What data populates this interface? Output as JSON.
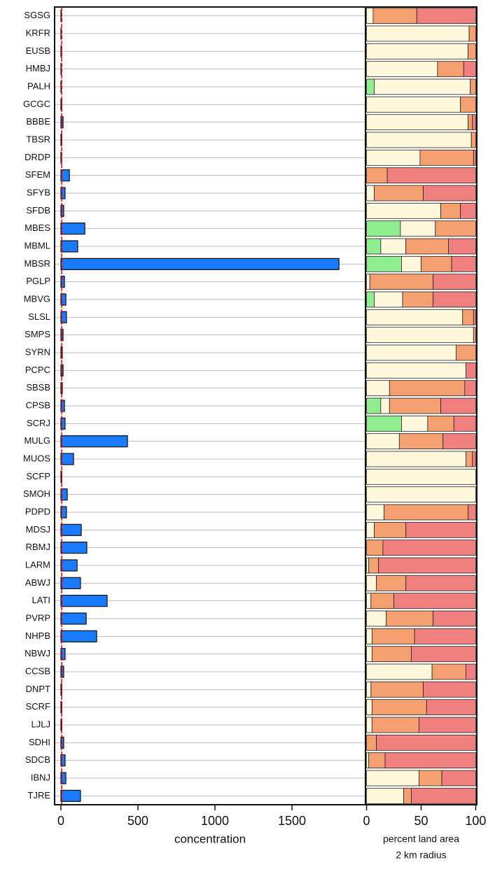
{
  "chart_data": [
    {
      "type": "bar",
      "orientation": "horizontal",
      "categories": [
        "SGSG",
        "KRFR",
        "EUSB",
        "HMBJ",
        "PALH",
        "GCGC",
        "BBBE",
        "TBSR",
        "DRDP",
        "SFEM",
        "SFYB",
        "SFDB",
        "MBES",
        "MBML",
        "MBSR",
        "PGLP",
        "MBVG",
        "SLSL",
        "SMPS",
        "SYRN",
        "PCPC",
        "SBSB",
        "CPSB",
        "SCRJ",
        "MULG",
        "MUOS",
        "SCFP",
        "SMOH",
        "PDPD",
        "MDSJ",
        "RBMJ",
        "LARM",
        "ABWJ",
        "LATI",
        "PVRP",
        "NHPB",
        "NBWJ",
        "CCSB",
        "DNPT",
        "SCRF",
        "LJLJ",
        "SDHI",
        "SDCB",
        "IBNJ",
        "TJRE"
      ],
      "values": [
        2,
        1,
        3,
        2,
        2,
        5,
        14,
        5,
        3,
        55,
        27,
        18,
        155,
        109,
        1805,
        23,
        32,
        36,
        14,
        9,
        14,
        9,
        23,
        27,
        432,
        82,
        5,
        41,
        36,
        132,
        168,
        105,
        127,
        300,
        164,
        232,
        27,
        18,
        5,
        5,
        5,
        18,
        27,
        32,
        127
      ],
      "color": "#1a7bff",
      "ref_line": 5,
      "ref_color": "#e00000",
      "xlim": [
        -41,
        1977
      ],
      "xticks": [
        0,
        500,
        1000,
        1500
      ],
      "xlabel": "concentration"
    },
    {
      "type": "stacked_bar",
      "orientation": "horizontal",
      "series": [
        {
          "color": "#90ee90",
          "values": [
            0,
            0,
            0,
            0,
            7,
            0,
            0,
            0,
            0,
            0,
            0,
            0,
            31,
            13,
            32,
            0,
            7,
            0,
            0,
            0,
            0,
            0,
            13,
            32,
            0,
            0,
            0,
            0,
            0,
            0,
            0,
            0,
            0,
            0,
            0,
            0,
            0,
            0,
            0,
            0,
            0,
            0,
            0,
            0,
            0
          ]
        },
        {
          "color": "#fff8dc",
          "values": [
            6,
            94,
            93,
            65,
            88,
            86,
            93,
            96,
            49,
            0,
            7,
            68,
            32,
            23,
            18,
            3,
            26,
            88,
            98,
            82,
            91,
            21,
            8,
            24,
            30,
            91,
            100,
            100,
            16,
            7,
            0,
            2,
            9,
            4,
            18,
            5,
            5,
            60,
            4,
            5,
            5,
            0,
            2,
            48,
            34
          ]
        },
        {
          "color": "#f4a070",
          "values": [
            40,
            6,
            7,
            24,
            5,
            14,
            4,
            4,
            49,
            19,
            45,
            18,
            37,
            39,
            28,
            58,
            28,
            10,
            2,
            18,
            0,
            69,
            47,
            24,
            40,
            6,
            0,
            0,
            77,
            29,
            15,
            9,
            27,
            21,
            43,
            39,
            36,
            31,
            48,
            50,
            43,
            9,
            15,
            21,
            7
          ]
        },
        {
          "color": "#f08080",
          "values": [
            54,
            0,
            0,
            11,
            0,
            0,
            3,
            0,
            2,
            81,
            48,
            14,
            0,
            25,
            22,
            39,
            39,
            2,
            0,
            0,
            9,
            10,
            32,
            20,
            30,
            3,
            0,
            0,
            7,
            64,
            85,
            89,
            64,
            75,
            39,
            56,
            59,
            9,
            48,
            45,
            52,
            91,
            83,
            31,
            59
          ]
        }
      ],
      "xlim": [
        -1,
        101
      ],
      "xticks": [
        0,
        50,
        100
      ],
      "xlabel": [
        "percent land area",
        "2 km radius"
      ]
    }
  ]
}
